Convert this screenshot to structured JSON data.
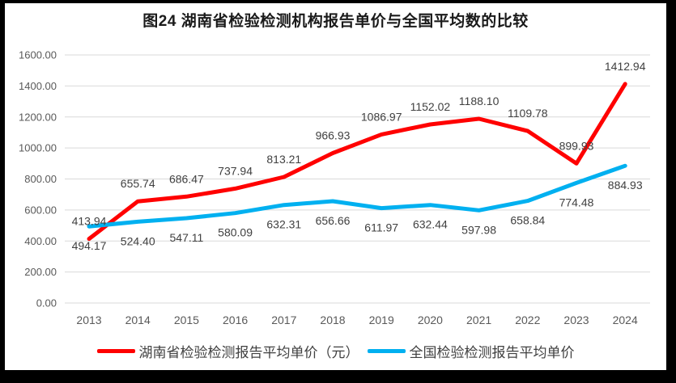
{
  "title": "图24 湖南省检验检测机构报告单价与全国平均数的比较",
  "colors": {
    "hunan_line": "#FF0000",
    "national_line": "#00B0F0",
    "gridline": "#D9D9D9",
    "axis_text": "#595959",
    "label_text": "#404040",
    "title_text": "#1A1A1A",
    "frame": "#000000",
    "panel": "#FFFFFF"
  },
  "legend": [
    {
      "label": "湖南省检验检测报告平均单价（元）",
      "color": "#FF0000"
    },
    {
      "label": "全国检验检测报告平均单价",
      "color": "#00B0F0"
    }
  ],
  "chart_data": {
    "type": "line",
    "title": "图24 湖南省检验检测机构报告单价与全国平均数的比较",
    "categories": [
      "2013",
      "2014",
      "2015",
      "2016",
      "2017",
      "2018",
      "2019",
      "2020",
      "2021",
      "2022",
      "2023",
      "2024"
    ],
    "series": [
      {
        "name": "湖南省检验检测报告平均单价（元）",
        "color": "#FF0000",
        "label_position": "above",
        "values": [
          413.94,
          655.74,
          686.47,
          737.94,
          813.21,
          966.93,
          1086.97,
          1152.02,
          1188.1,
          1109.78,
          899.93,
          1412.94
        ]
      },
      {
        "name": "全国检验检测报告平均单价",
        "color": "#00B0F0",
        "label_position": "below",
        "values": [
          494.17,
          524.4,
          547.11,
          580.09,
          632.31,
          656.66,
          611.97,
          632.44,
          597.98,
          658.84,
          774.48,
          884.93
        ]
      }
    ],
    "xlabel": "",
    "ylabel": "",
    "ylim": [
      0,
      1600
    ],
    "y_tick_step": 200,
    "y_tick_format": "2-decimals",
    "grid": true,
    "legend_position": "bottom"
  }
}
